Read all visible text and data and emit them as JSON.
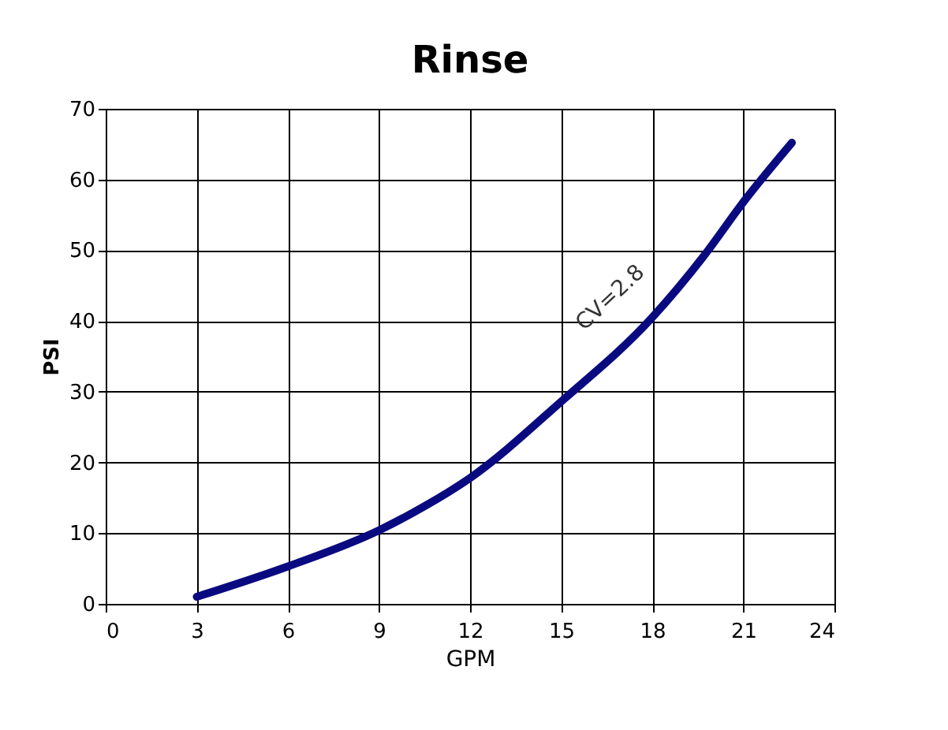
{
  "chart_data": {
    "type": "line",
    "title": "Rinse",
    "xlabel": "GPM",
    "ylabel": "PSI",
    "x": [
      3,
      6,
      9,
      10.5,
      12,
      15,
      18,
      19.7,
      21,
      22.6
    ],
    "series": [
      {
        "color": "#0a0a80",
        "values": [
          1,
          5.3,
          10.4,
          13.8,
          17.8,
          28.6,
          40.5,
          49.2,
          56.8,
          65.2
        ]
      }
    ],
    "xlim": [
      0,
      24
    ],
    "xticks": [
      0,
      3,
      6,
      9,
      12,
      15,
      18,
      21,
      24
    ],
    "ylim": [
      0,
      70
    ],
    "yticks": [
      0,
      10,
      20,
      30,
      40,
      50,
      60,
      70
    ],
    "grid": true,
    "marker": "none",
    "line_style": "solid",
    "legend": false,
    "annotations": [
      "CV=2.8"
    ]
  }
}
